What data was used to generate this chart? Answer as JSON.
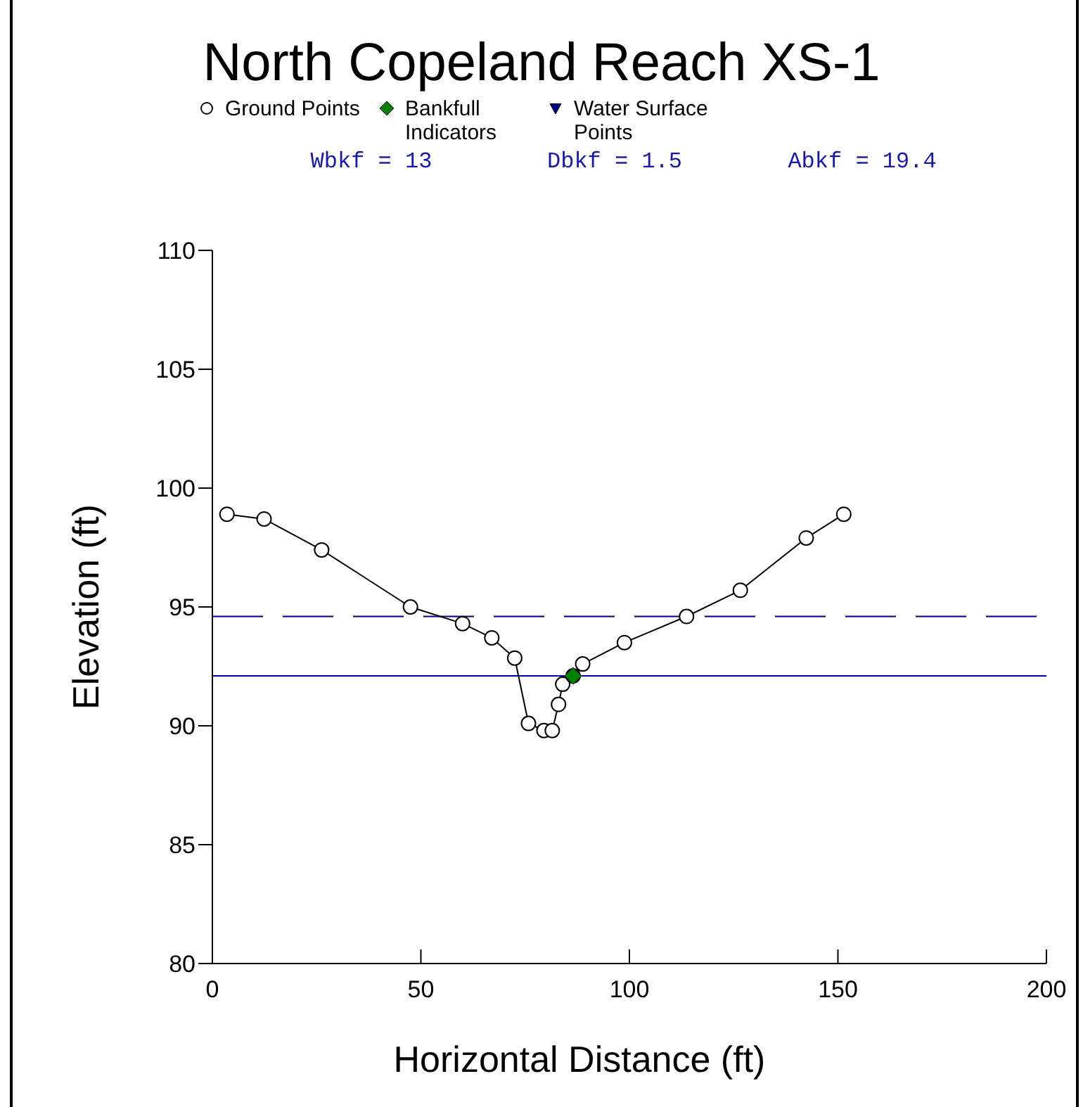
{
  "chart_data": {
    "type": "line",
    "title": "North Copeland Reach XS-1",
    "xlabel": "Horizontal Distance (ft)",
    "ylabel": "Elevation (ft)",
    "annotations": [
      "Wbkf = 13",
      "Dbkf = 1.5",
      "Abkf = 19.4"
    ],
    "series": [
      {
        "name": "Ground Points",
        "color": "#000000",
        "marker": "circle",
        "x": [
          3.5,
          12.4,
          26.2,
          47.5,
          60,
          67,
          72.5,
          75.8,
          79.5,
          81.5,
          83,
          84,
          86.5,
          88.8,
          98.8,
          113.7,
          126.6,
          142.4,
          151.4
        ],
        "values": [
          98.9,
          98.7,
          97.4,
          95,
          94.3,
          93.7,
          92.85,
          90.1,
          89.8,
          89.8,
          90.9,
          91.75,
          92.1,
          92.6,
          93.5,
          94.6,
          95.7,
          97.9,
          98.9
        ]
      },
      {
        "name": "Bankfull Indicators",
        "type": "scatter",
        "color": "#008000",
        "marker": "diamond",
        "x": [
          86.5
        ],
        "values": [
          92.1
        ]
      },
      {
        "name": "Water Surface Points",
        "type": "scatter",
        "color": "#000080",
        "marker": "triangle"
      }
    ],
    "ref_lines": [
      {
        "axis": "y",
        "value": 94.6,
        "color": "#000080",
        "line_style": "dashed"
      },
      {
        "axis": "y",
        "value": 92.1,
        "color": "#0000a0",
        "line_style": "solid"
      }
    ],
    "xlim": [
      0,
      200
    ],
    "ylim": [
      80,
      110
    ],
    "xticks": [
      0,
      50,
      100,
      150,
      200
    ],
    "yticks": [
      80,
      85,
      90,
      95,
      100,
      105,
      110
    ],
    "grid": false,
    "legend": "top"
  }
}
